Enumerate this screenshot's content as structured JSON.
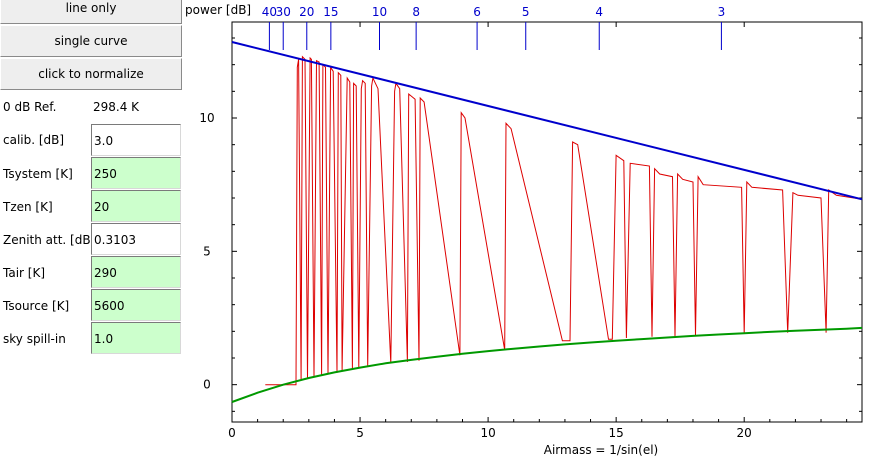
{
  "buttons": {
    "line_only": "line only",
    "single_curve": "single curve",
    "normalize": "click to normalize"
  },
  "reference": {
    "label": "0 dB Ref.",
    "value": "298.4 K"
  },
  "params": [
    {
      "label": "calib. [dB]",
      "value": "3.0",
      "color": "#ffffff"
    },
    {
      "label": "Tsystem [K]",
      "value": "250",
      "color": "#ccffcc"
    },
    {
      "label": "Tzen [K]",
      "value": "20",
      "color": "#ccffcc"
    },
    {
      "label": "Zenith att. [dB]",
      "value": "0.3103",
      "color": "#ffffff"
    },
    {
      "label": "Tair [K]",
      "value": "290",
      "color": "#ccffcc"
    },
    {
      "label": "Tsource [K]",
      "value": "5600",
      "color": "#ccffcc"
    },
    {
      "label": "sky spill-in",
      "value": "1.0",
      "color": "#ccffcc"
    }
  ],
  "chart_data": {
    "type": "line",
    "ylabel": "power [dB]",
    "xlabel": "Airmass = 1/sin(el)",
    "xlim": [
      0,
      24.6
    ],
    "ylim": [
      -1.4,
      13.6
    ],
    "x_ticks": [
      0,
      5,
      10,
      15,
      20
    ],
    "y_ticks": [
      0,
      5,
      10
    ],
    "top_axis_labels": [
      {
        "text": "40",
        "x": 1.46
      },
      {
        "text": "30",
        "x": 2.0
      },
      {
        "text": "20",
        "x": 2.92
      },
      {
        "text": "15",
        "x": 3.86
      },
      {
        "text": "10",
        "x": 5.76
      },
      {
        "text": "8",
        "x": 7.19
      },
      {
        "text": "6",
        "x": 9.57
      },
      {
        "text": "5",
        "x": 11.47
      },
      {
        "text": "4",
        "x": 14.34
      },
      {
        "text": "3",
        "x": 19.11
      }
    ],
    "colors": {
      "fit": "#0000cc",
      "floor": "#009900",
      "measured": "#dd0000"
    },
    "fit_line": {
      "x": [
        0,
        24.6
      ],
      "y": [
        12.85,
        6.95
      ]
    },
    "floor_curve": {
      "x": [
        0,
        1,
        2,
        3,
        4,
        5,
        6,
        7,
        8,
        9,
        10,
        11,
        12,
        13,
        14,
        15,
        16,
        17,
        18,
        19,
        20,
        21,
        22,
        23,
        24,
        24.6
      ],
      "y": [
        -0.65,
        -0.3,
        0.0,
        0.25,
        0.46,
        0.64,
        0.8,
        0.93,
        1.05,
        1.16,
        1.26,
        1.35,
        1.43,
        1.51,
        1.58,
        1.65,
        1.71,
        1.77,
        1.83,
        1.88,
        1.93,
        1.98,
        2.02,
        2.06,
        2.1,
        2.13
      ]
    },
    "measured": {
      "x": [
        1.3,
        2.5,
        2.55,
        2.6,
        2.7,
        2.75,
        2.85,
        2.95,
        3.05,
        3.1,
        3.2,
        3.3,
        3.4,
        3.5,
        3.55,
        3.65,
        3.75,
        3.85,
        3.95,
        4.1,
        4.15,
        4.25,
        4.3,
        4.5,
        4.6,
        4.7,
        4.75,
        4.85,
        4.95,
        5.05,
        5.1,
        5.2,
        5.3,
        5.45,
        5.5,
        5.7,
        6.2,
        6.35,
        6.4,
        6.55,
        6.85,
        6.9,
        7.15,
        7.3,
        7.35,
        7.5,
        8.9,
        8.95,
        9.1,
        10.65,
        10.7,
        10.9,
        12.9,
        13.2,
        13.3,
        13.5,
        14.7,
        14.85,
        15.0,
        15.3,
        15.4,
        15.55,
        16.3,
        16.4,
        16.5,
        16.7,
        17.2,
        17.3,
        17.4,
        17.6,
        18.0,
        18.1,
        18.2,
        18.4,
        19.9,
        20.0,
        20.1,
        20.3,
        21.5,
        21.7,
        21.9,
        22.1,
        23.0,
        23.2,
        23.3,
        23.6,
        24.6
      ],
      "y": [
        0.0,
        0.0,
        11.9,
        12.2,
        0.15,
        12.3,
        12.2,
        0.25,
        12.25,
        12.2,
        0.3,
        12.15,
        12.1,
        0.35,
        12.0,
        11.9,
        0.4,
        11.9,
        11.75,
        0.45,
        11.7,
        11.6,
        0.55,
        11.5,
        11.35,
        0.6,
        11.3,
        11.2,
        0.65,
        11.1,
        11.4,
        11.3,
        0.7,
        11.2,
        11.5,
        11.1,
        0.8,
        11.0,
        11.3,
        11.1,
        0.85,
        10.9,
        10.7,
        0.9,
        10.75,
        10.6,
        1.1,
        10.2,
        10.0,
        1.3,
        9.8,
        9.6,
        1.65,
        1.65,
        9.1,
        9.0,
        1.7,
        1.7,
        8.6,
        8.4,
        1.75,
        8.3,
        8.2,
        1.8,
        8.1,
        7.9,
        7.8,
        1.8,
        7.9,
        7.7,
        7.6,
        1.85,
        7.8,
        7.5,
        7.4,
        1.9,
        7.6,
        7.4,
        7.3,
        1.95,
        7.2,
        7.1,
        7.0,
        1.95,
        7.3,
        7.1,
        6.95
      ]
    }
  }
}
